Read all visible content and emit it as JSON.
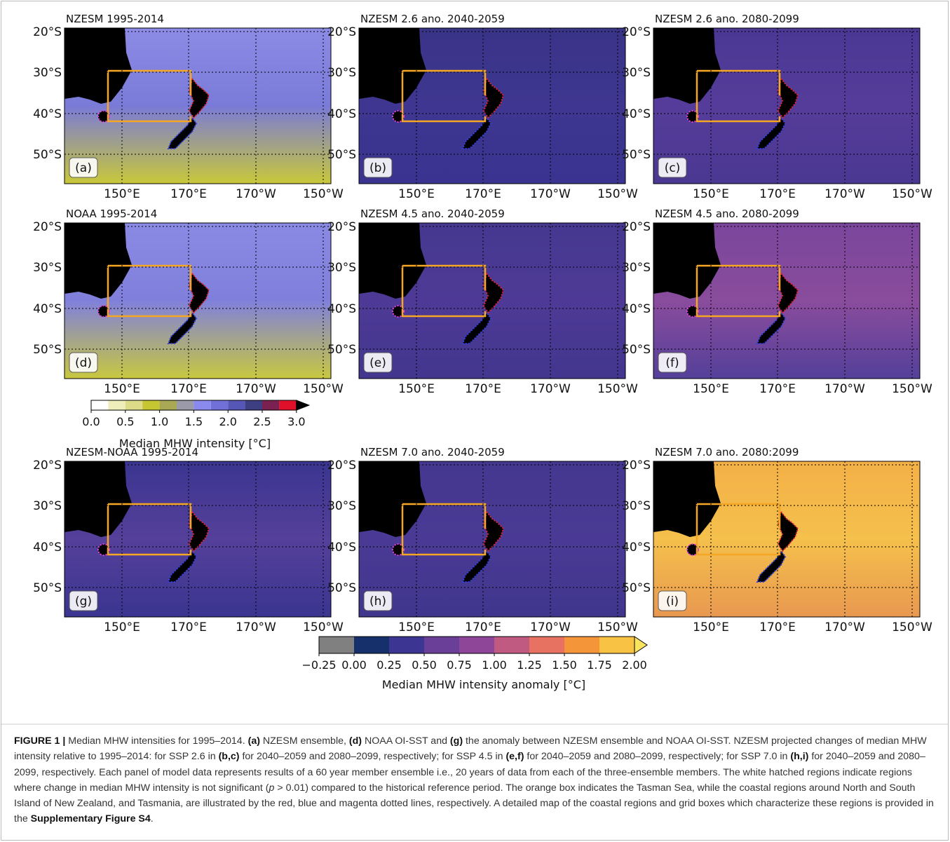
{
  "panels": [
    {
      "title": "NZESM 1995-2014",
      "label": "(a)"
    },
    {
      "title": "NZESM 2.6 ano. 2040-2059",
      "label": "(b)"
    },
    {
      "title": "NZESM 2.6 ano. 2080-2099",
      "label": "(c)"
    },
    {
      "title": "NOAA 1995-2014",
      "label": "(d)"
    },
    {
      "title": "NZESM 4.5 ano. 2040-2059",
      "label": "(e)"
    },
    {
      "title": "NZESM 4.5 ano. 2080-2099",
      "label": "(f)"
    },
    {
      "title": "NZESM-NOAA 1995-2014",
      "label": "(g)"
    },
    {
      "title": "NZESM 7.0 ano. 2040-2059",
      "label": "(h)"
    },
    {
      "title": "NZESM 7.0 ano. 2080:2099",
      "label": "(i)"
    }
  ],
  "lat_labels": [
    "20°S",
    "30°S",
    "40°S",
    "50°S"
  ],
  "lon_labels": [
    "150°E",
    "170°E",
    "170°W",
    "150°W"
  ],
  "colorbar_intensity": {
    "ticks": [
      "0.0",
      "0.5",
      "1.0",
      "1.5",
      "2.0",
      "2.5",
      "3.0"
    ],
    "label": "Median MHW intensity [°C]",
    "colors": [
      "#ffffff",
      "#eeeebb",
      "#dcdc88",
      "#c6c632",
      "#a9a955",
      "#9a9aa8",
      "#8a8aee",
      "#7070d8",
      "#5656b6",
      "#3e3e82",
      "#7a2152",
      "#e0102a",
      "#000000"
    ]
  },
  "colorbar_anomaly": {
    "ticks": [
      "−0.25",
      "0.00",
      "0.25",
      "0.50",
      "0.75",
      "1.00",
      "1.25",
      "1.50",
      "1.75",
      "2.00"
    ],
    "label": "Median MHW intensity anomaly [°C]",
    "colors": [
      "#808080",
      "#16306c",
      "#3c3592",
      "#6a3f98",
      "#8d4698",
      "#c05a80",
      "#e87262",
      "#f5953a",
      "#f8c244",
      "#f9e45e"
    ]
  },
  "caption": [
    "FIGURE 1 |",
    " Median MHW intensities for 1995–2014. ",
    "(a)",
    " NZESM ensemble, ",
    "(d)",
    " NOAA OI-SST and ",
    "(g)",
    " the anomaly between NZESM ensemble and NOAA OI-SST. NZESM projected changes of median MHW intensity relative to 1995–2014: for SSP 2.6 in ",
    "(b,c)",
    " for 2040–2059 and 2080–2099, respectively; for SSP 4.5 in ",
    "(e,f)",
    " for 2040–2059 and 2080–2099, respectively; for SSP 7.0 in ",
    "(h,i)",
    " for 2040–2059 and 2080–2099, respectively. Each panel of model data represents results of a 60 year member ensemble i.e., 20 years of data from each of the three-ensemble members. The white hatched regions indicate regions where change in median MHW intensity is not significant (",
    "p",
    " > 0.01) compared to the historical reference period. The orange box indicates the Tasman Sea, while the coastal regions around North and South Island of New Zealand, and Tasmania, are illustrated by the red, blue and magenta dotted lines, respectively. A detailed map of the coastal regions and grid boxes which characterize these regions is provided in the ",
    "Supplementary Figure S4",
    "."
  ]
}
